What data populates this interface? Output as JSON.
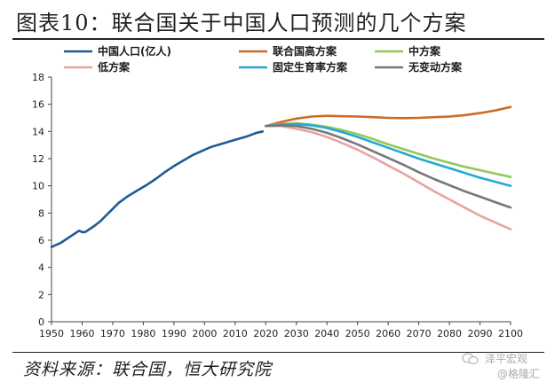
{
  "header": {
    "title": "图表10：联合国关于中国人口预测的几个方案"
  },
  "footer": {
    "source": "资料来源：联合国，恒大研究院"
  },
  "watermark": {
    "line1": "泽平宏观",
    "line2": "@格隆汇",
    "icon": "wechat-icon"
  },
  "chart_data": {
    "type": "line",
    "title": "图表10：联合国关于中国人口预测的几个方案",
    "xlabel": "",
    "ylabel": "",
    "xlim": [
      1950,
      2100
    ],
    "ylim": [
      0,
      18
    ],
    "xticks": [
      1950,
      1960,
      1970,
      1980,
      1990,
      2000,
      2010,
      2020,
      2030,
      2040,
      2050,
      2060,
      2070,
      2080,
      2090,
      2100
    ],
    "yticks": [
      0,
      2,
      4,
      6,
      8,
      10,
      12,
      14,
      16,
      18
    ],
    "legend_position": "top",
    "series": [
      {
        "name": "中国人口(亿人)",
        "color": "#1f5a96",
        "x": [
          1950,
          1953,
          1955,
          1957,
          1959,
          1960,
          1961,
          1962,
          1964,
          1966,
          1968,
          1970,
          1972,
          1975,
          1978,
          1981,
          1984,
          1987,
          1990,
          1993,
          1996,
          1999,
          2002,
          2005,
          2008,
          2011,
          2014,
          2017,
          2019
        ],
        "y": [
          5.5,
          5.8,
          6.1,
          6.4,
          6.7,
          6.6,
          6.6,
          6.75,
          7.05,
          7.4,
          7.85,
          8.3,
          8.75,
          9.25,
          9.65,
          10.05,
          10.5,
          11.0,
          11.45,
          11.85,
          12.25,
          12.55,
          12.85,
          13.05,
          13.25,
          13.45,
          13.65,
          13.9,
          14.0
        ]
      },
      {
        "name": "联合国高方案",
        "color": "#cc6a26",
        "x": [
          2020,
          2025,
          2030,
          2035,
          2040,
          2045,
          2050,
          2055,
          2060,
          2065,
          2070,
          2075,
          2080,
          2085,
          2090,
          2095,
          2100
        ],
        "y": [
          14.4,
          14.7,
          14.95,
          15.1,
          15.15,
          15.12,
          15.1,
          15.05,
          15.0,
          14.98,
          15.0,
          15.05,
          15.1,
          15.2,
          15.35,
          15.55,
          15.8
        ]
      },
      {
        "name": "中方案",
        "color": "#92c956",
        "x": [
          2020,
          2025,
          2030,
          2035,
          2040,
          2045,
          2050,
          2055,
          2060,
          2065,
          2070,
          2075,
          2080,
          2085,
          2090,
          2095,
          2100
        ],
        "y": [
          14.4,
          14.55,
          14.6,
          14.5,
          14.35,
          14.1,
          13.8,
          13.45,
          13.05,
          12.7,
          12.35,
          12.0,
          11.7,
          11.4,
          11.15,
          10.9,
          10.65
        ]
      },
      {
        "name": "低方案",
        "color": "#e8a3a0",
        "x": [
          2020,
          2025,
          2030,
          2035,
          2040,
          2045,
          2050,
          2055,
          2060,
          2065,
          2070,
          2075,
          2080,
          2085,
          2090,
          2095,
          2100
        ],
        "y": [
          14.4,
          14.4,
          14.2,
          13.95,
          13.6,
          13.15,
          12.65,
          12.1,
          11.5,
          10.9,
          10.25,
          9.6,
          9.0,
          8.4,
          7.8,
          7.3,
          6.8
        ]
      },
      {
        "name": "固定生育率方案",
        "color": "#25a9d4",
        "x": [
          2020,
          2025,
          2030,
          2035,
          2040,
          2045,
          2050,
          2055,
          2060,
          2065,
          2070,
          2075,
          2080,
          2085,
          2090,
          2095,
          2100
        ],
        "y": [
          14.4,
          14.5,
          14.55,
          14.45,
          14.25,
          13.95,
          13.6,
          13.2,
          12.8,
          12.4,
          12.0,
          11.65,
          11.3,
          10.95,
          10.6,
          10.3,
          10.0
        ]
      },
      {
        "name": "无变动方案",
        "color": "#777777",
        "x": [
          2020,
          2025,
          2030,
          2035,
          2040,
          2045,
          2050,
          2055,
          2060,
          2065,
          2070,
          2075,
          2080,
          2085,
          2090,
          2095,
          2100
        ],
        "y": [
          14.4,
          14.45,
          14.4,
          14.2,
          13.9,
          13.5,
          13.05,
          12.55,
          12.05,
          11.55,
          11.0,
          10.5,
          10.05,
          9.6,
          9.2,
          8.8,
          8.4
        ]
      }
    ]
  }
}
